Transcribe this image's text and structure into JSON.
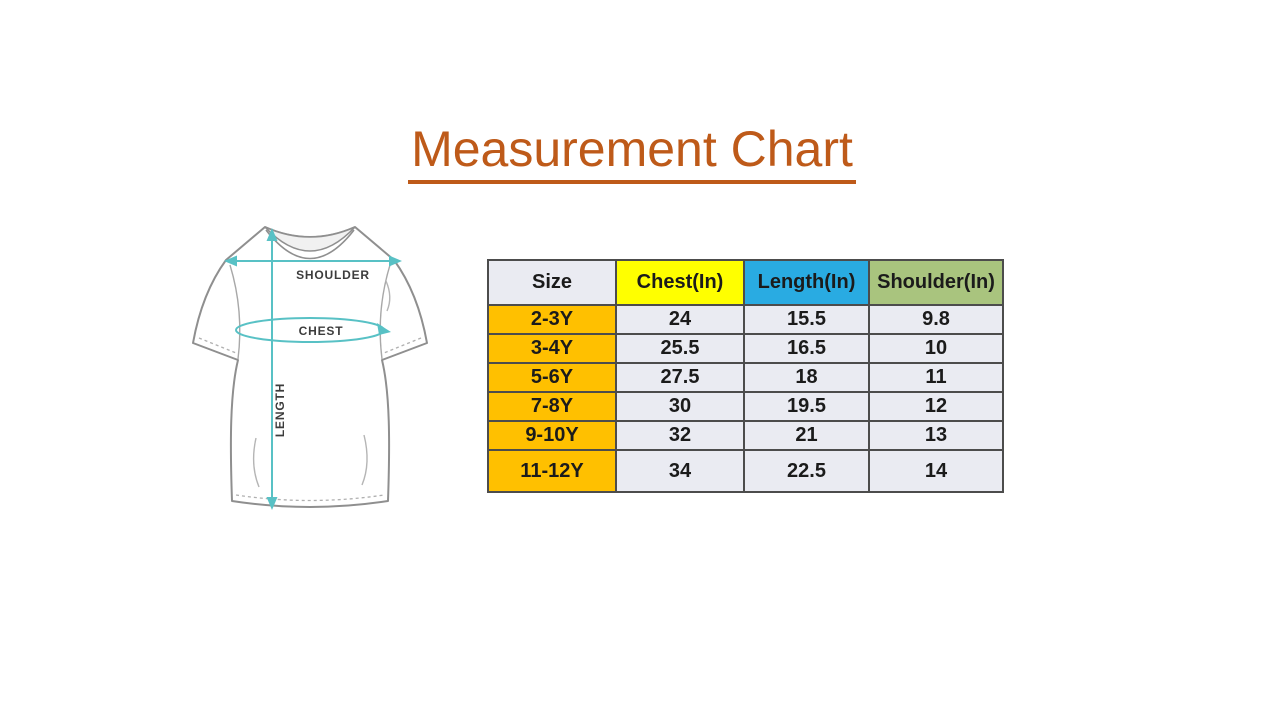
{
  "page_title": "Measurement Chart",
  "diagram": {
    "labels": {
      "shoulder": "SHOULDER",
      "chest": "CHEST",
      "length": "LENGTH"
    }
  },
  "chart_data": {
    "type": "table",
    "title": "Measurement Chart",
    "columns": [
      "Size",
      "Chest(In)",
      "Length(In)",
      "Shoulder(In)"
    ],
    "rows": [
      [
        "2-3Y",
        "24",
        "15.5",
        "9.8"
      ],
      [
        "3-4Y",
        "25.5",
        "16.5",
        "10"
      ],
      [
        "5-6Y",
        "27.5",
        "18",
        "11"
      ],
      [
        "7-8Y",
        "30",
        "19.5",
        "12"
      ],
      [
        "9-10Y",
        "32",
        "21",
        "13"
      ],
      [
        "11-12Y",
        "34",
        "22.5",
        "14"
      ]
    ]
  },
  "colors": {
    "title": "#BE5A19",
    "table_border": "#4c4c4c",
    "header_size_bg": "#EAEBF2",
    "header_chest_bg": "#FFFF00",
    "header_length_bg": "#29ABE2",
    "header_shoulder_bg": "#A9C47E",
    "size_col_bg": "#FFC000",
    "cell_bg": "#EAEBF2",
    "accent_teal": "#58C1C5",
    "shirt_outline": "#8f8f8f"
  }
}
